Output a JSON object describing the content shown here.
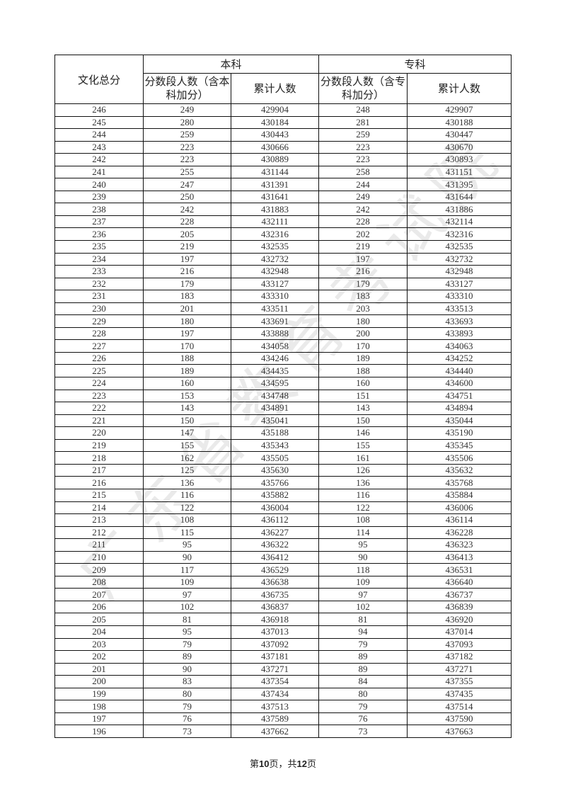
{
  "table": {
    "header": {
      "score": "文化总分",
      "undergrad": "本科",
      "college": "专科",
      "undergrad_count": "分数段人数（含本科加分）",
      "undergrad_cum": "累计人数",
      "college_count": "分数段人数（含专科加分）",
      "college_cum": "累计人数"
    },
    "rows": [
      [
        "246",
        "249",
        "429904",
        "248",
        "429907"
      ],
      [
        "245",
        "280",
        "430184",
        "281",
        "430188"
      ],
      [
        "244",
        "259",
        "430443",
        "259",
        "430447"
      ],
      [
        "243",
        "223",
        "430666",
        "223",
        "430670"
      ],
      [
        "242",
        "223",
        "430889",
        "223",
        "430893"
      ],
      [
        "241",
        "255",
        "431144",
        "258",
        "431151"
      ],
      [
        "240",
        "247",
        "431391",
        "244",
        "431395"
      ],
      [
        "239",
        "250",
        "431641",
        "249",
        "431644"
      ],
      [
        "238",
        "242",
        "431883",
        "242",
        "431886"
      ],
      [
        "237",
        "228",
        "432111",
        "228",
        "432114"
      ],
      [
        "236",
        "205",
        "432316",
        "202",
        "432316"
      ],
      [
        "235",
        "219",
        "432535",
        "219",
        "432535"
      ],
      [
        "234",
        "197",
        "432732",
        "197",
        "432732"
      ],
      [
        "233",
        "216",
        "432948",
        "216",
        "432948"
      ],
      [
        "232",
        "179",
        "433127",
        "179",
        "433127"
      ],
      [
        "231",
        "183",
        "433310",
        "183",
        "433310"
      ],
      [
        "230",
        "201",
        "433511",
        "203",
        "433513"
      ],
      [
        "229",
        "180",
        "433691",
        "180",
        "433693"
      ],
      [
        "228",
        "197",
        "433888",
        "200",
        "433893"
      ],
      [
        "227",
        "170",
        "434058",
        "170",
        "434063"
      ],
      [
        "226",
        "188",
        "434246",
        "189",
        "434252"
      ],
      [
        "225",
        "189",
        "434435",
        "188",
        "434440"
      ],
      [
        "224",
        "160",
        "434595",
        "160",
        "434600"
      ],
      [
        "223",
        "153",
        "434748",
        "151",
        "434751"
      ],
      [
        "222",
        "143",
        "434891",
        "143",
        "434894"
      ],
      [
        "221",
        "150",
        "435041",
        "150",
        "435044"
      ],
      [
        "220",
        "147",
        "435188",
        "146",
        "435190"
      ],
      [
        "219",
        "155",
        "435343",
        "155",
        "435345"
      ],
      [
        "218",
        "162",
        "435505",
        "161",
        "435506"
      ],
      [
        "217",
        "125",
        "435630",
        "126",
        "435632"
      ],
      [
        "216",
        "136",
        "435766",
        "136",
        "435768"
      ],
      [
        "215",
        "116",
        "435882",
        "116",
        "435884"
      ],
      [
        "214",
        "122",
        "436004",
        "122",
        "436006"
      ],
      [
        "213",
        "108",
        "436112",
        "108",
        "436114"
      ],
      [
        "212",
        "115",
        "436227",
        "114",
        "436228"
      ],
      [
        "211",
        "95",
        "436322",
        "95",
        "436323"
      ],
      [
        "210",
        "90",
        "436412",
        "90",
        "436413"
      ],
      [
        "209",
        "117",
        "436529",
        "118",
        "436531"
      ],
      [
        "208",
        "109",
        "436638",
        "109",
        "436640"
      ],
      [
        "207",
        "97",
        "436735",
        "97",
        "436737"
      ],
      [
        "206",
        "102",
        "436837",
        "102",
        "436839"
      ],
      [
        "205",
        "81",
        "436918",
        "81",
        "436920"
      ],
      [
        "204",
        "95",
        "437013",
        "94",
        "437014"
      ],
      [
        "203",
        "79",
        "437092",
        "79",
        "437093"
      ],
      [
        "202",
        "89",
        "437181",
        "89",
        "437182"
      ],
      [
        "201",
        "90",
        "437271",
        "89",
        "437271"
      ],
      [
        "200",
        "83",
        "437354",
        "84",
        "437355"
      ],
      [
        "199",
        "80",
        "437434",
        "80",
        "437435"
      ],
      [
        "198",
        "79",
        "437513",
        "79",
        "437514"
      ],
      [
        "197",
        "76",
        "437589",
        "76",
        "437590"
      ],
      [
        "196",
        "73",
        "437662",
        "73",
        "437663"
      ]
    ]
  },
  "footer": {
    "prefix": "第",
    "page": "10",
    "middle": "页，共",
    "total": "12",
    "suffix": "页"
  },
  "watermark": "广东省教育考试院"
}
